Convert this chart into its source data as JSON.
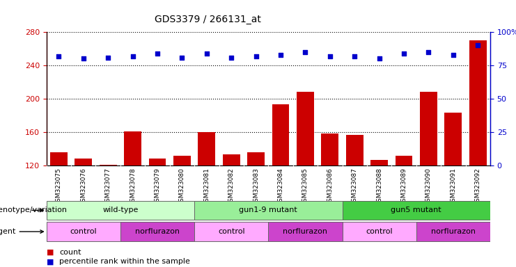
{
  "title": "GDS3379 / 266131_at",
  "samples": [
    "GSM323075",
    "GSM323076",
    "GSM323077",
    "GSM323078",
    "GSM323079",
    "GSM323080",
    "GSM323081",
    "GSM323082",
    "GSM323083",
    "GSM323084",
    "GSM323085",
    "GSM323086",
    "GSM323087",
    "GSM323088",
    "GSM323089",
    "GSM323090",
    "GSM323091",
    "GSM323092"
  ],
  "counts": [
    136,
    128,
    121,
    161,
    128,
    132,
    160,
    133,
    136,
    193,
    208,
    158,
    157,
    127,
    132,
    208,
    183,
    270
  ],
  "percentiles": [
    82,
    80,
    81,
    82,
    84,
    81,
    84,
    81,
    82,
    83,
    85,
    82,
    82,
    80,
    84,
    85,
    83,
    90
  ],
  "ylim_left": [
    120,
    280
  ],
  "ylim_right": [
    0,
    100
  ],
  "yticks_left": [
    120,
    160,
    200,
    240,
    280
  ],
  "yticks_right": [
    0,
    25,
    50,
    75,
    100
  ],
  "bar_color": "#cc0000",
  "dot_color": "#0000cc",
  "plot_bg": "#ffffff",
  "tick_area_bg": "#dddddd",
  "genotype_groups": [
    {
      "label": "wild-type",
      "start": 0,
      "end": 5,
      "color": "#ccffcc"
    },
    {
      "label": "gun1-9 mutant",
      "start": 6,
      "end": 11,
      "color": "#99ee99"
    },
    {
      "label": "gun5 mutant",
      "start": 12,
      "end": 17,
      "color": "#44cc44"
    }
  ],
  "agent_groups": [
    {
      "label": "control",
      "start": 0,
      "end": 2,
      "color": "#ffaaff"
    },
    {
      "label": "norflurazon",
      "start": 3,
      "end": 5,
      "color": "#cc44cc"
    },
    {
      "label": "control",
      "start": 6,
      "end": 8,
      "color": "#ffaaff"
    },
    {
      "label": "norflurazon",
      "start": 9,
      "end": 11,
      "color": "#cc44cc"
    },
    {
      "label": "control",
      "start": 12,
      "end": 14,
      "color": "#ffaaff"
    },
    {
      "label": "norflurazon",
      "start": 15,
      "end": 17,
      "color": "#cc44cc"
    }
  ],
  "legend_count_color": "#cc0000",
  "legend_dot_color": "#0000cc",
  "axis_label_color": "#cc0000",
  "right_axis_color": "#0000cc"
}
